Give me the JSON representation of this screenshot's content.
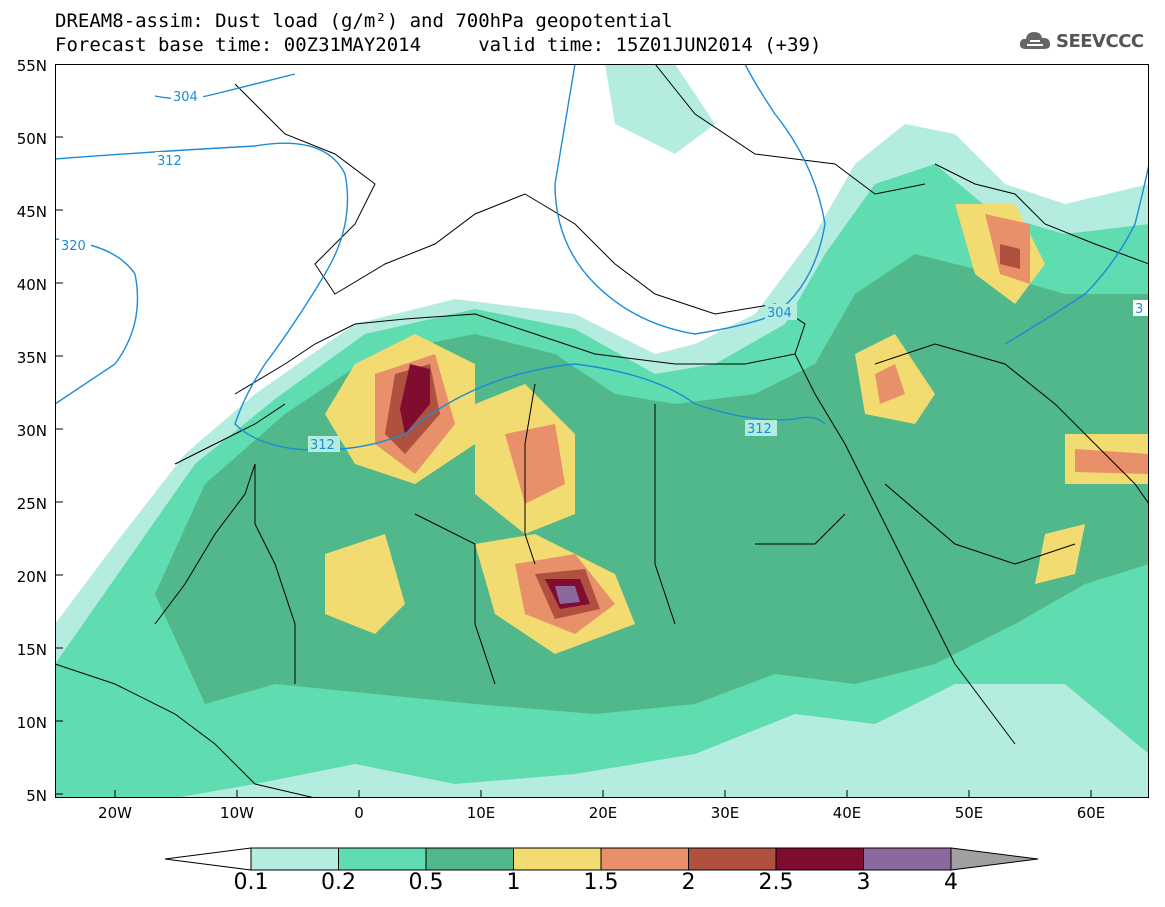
{
  "header": {
    "title_line1": "DREAM8-assim: Dust load (g/m²) and 700hPa geopotential",
    "title_line2": "Forecast base time: 00Z31MAY2014     valid time: 15Z01JUN2014 (+39)",
    "logo_text": "SEEVCCC",
    "logo_icon": "cloud-icon"
  },
  "map": {
    "lat_labels": [
      "55N",
      "50N",
      "45N",
      "40N",
      "35N",
      "30N",
      "25N",
      "20N",
      "15N",
      "10N",
      "5N"
    ],
    "lon_labels": [
      "20W",
      "10W",
      "0",
      "10E",
      "20E",
      "30E",
      "40E",
      "50E",
      "60E"
    ],
    "contour_labels": [
      "304",
      "312",
      "320",
      "304",
      "312",
      "312",
      "3"
    ]
  },
  "colorbar": {
    "levels": [
      "0.1",
      "0.2",
      "0.5",
      "1",
      "1.5",
      "2",
      "2.5",
      "3",
      "4"
    ],
    "colors": [
      "#b5ece0",
      "#5fdcb0",
      "#50b88a",
      "#f2dc72",
      "#e8906a",
      "#b0503e",
      "#800d30",
      "#8c699c"
    ],
    "low_extend_color": "#ffffff",
    "high_extend_color": "#a0a0a0"
  }
}
